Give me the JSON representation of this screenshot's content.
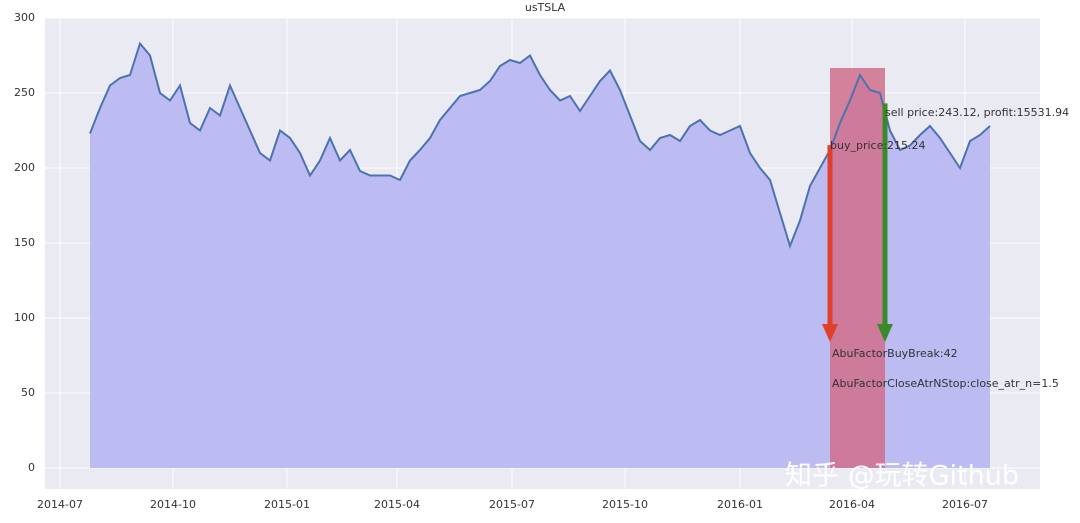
{
  "chart_data": {
    "type": "area-line",
    "title": "usTSLA",
    "values": [
      223,
      240,
      255,
      260,
      262,
      283,
      275,
      250,
      245,
      255,
      230,
      225,
      240,
      235,
      255,
      240,
      225,
      210,
      205,
      225,
      220,
      210,
      195,
      205,
      220,
      205,
      212,
      198,
      195,
      195,
      195,
      192,
      205,
      212,
      220,
      232,
      240,
      248,
      250,
      252,
      258,
      268,
      272,
      270,
      275,
      262,
      252,
      245,
      248,
      238,
      248,
      258,
      265,
      252,
      235,
      218,
      212,
      220,
      222,
      218,
      228,
      232,
      225,
      222,
      225,
      228,
      210,
      200,
      192,
      170,
      148,
      165,
      188,
      200,
      212,
      230,
      245,
      262,
      252,
      250,
      225,
      212,
      215,
      222,
      228,
      220,
      210,
      200,
      218,
      222,
      228
    ],
    "color": "#4c72b0",
    "fill": "#bcbcf2",
    "xlim": [
      -4.5,
      95
    ],
    "xticks": [
      {
        "value": -3,
        "label": "2014-07"
      },
      {
        "value": 8.3,
        "label": "2014-10"
      },
      {
        "value": 19.7,
        "label": "2015-01"
      },
      {
        "value": 30.7,
        "label": "2015-04"
      },
      {
        "value": 42.2,
        "label": "2015-07"
      },
      {
        "value": 53.5,
        "label": "2015-10"
      },
      {
        "value": 65,
        "label": "2016-01"
      },
      {
        "value": 76.2,
        "label": "2016-04"
      },
      {
        "value": 87.5,
        "label": "2016-07"
      }
    ],
    "ylim": [
      -14,
      300
    ],
    "yticks": [
      0,
      50,
      100,
      150,
      200,
      250,
      300
    ],
    "grid": true,
    "hold_span": [
      74,
      79.5
    ],
    "hold_color": "#d06f8c",
    "buy": {
      "text": "buy_price:215.24",
      "value": 215.24,
      "color": "#e0402a"
    },
    "sell": {
      "text": "sell price:243.12, profit:15531.94",
      "value": 243.12,
      "color": "#3a8a2a"
    },
    "annotations": [
      "AbuFactorBuyBreak:42",
      "AbuFactorCloseAtrNStop:close_atr_n=1.5"
    ],
    "watermark": "知乎 @玩转Github"
  }
}
